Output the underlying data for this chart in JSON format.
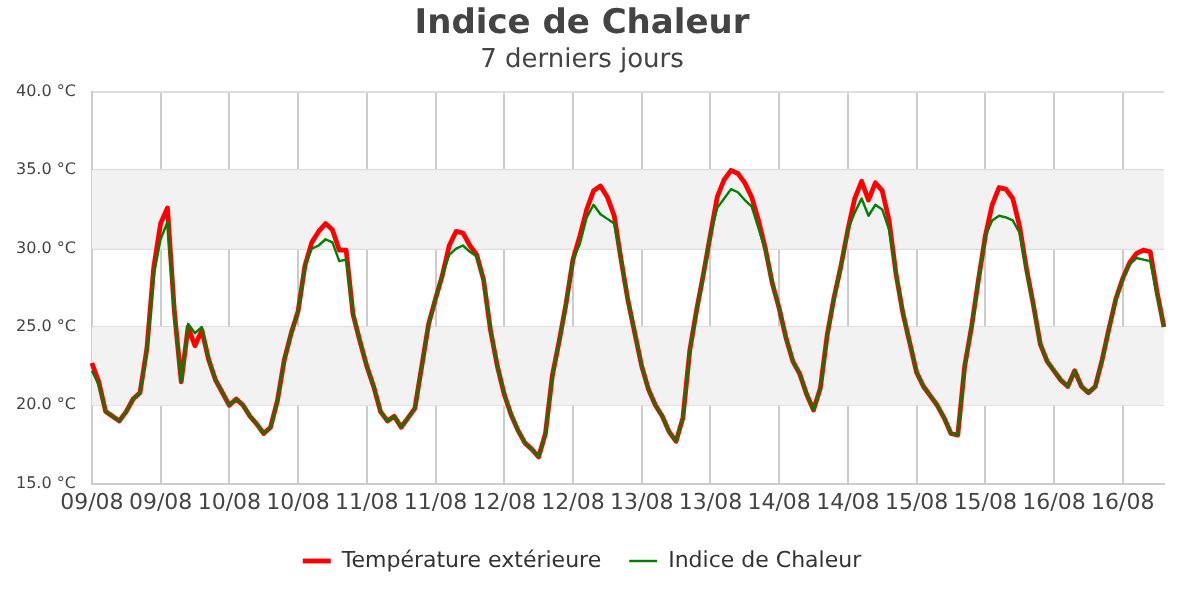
{
  "chart_data": {
    "type": "line",
    "title": "Indice de Chaleur",
    "subtitle": "7 derniers jours",
    "categories": [
      "09/08",
      null,
      null,
      null,
      null,
      null,
      null,
      null,
      null,
      null,
      "09/08",
      null,
      null,
      null,
      null,
      null,
      null,
      null,
      null,
      null,
      "10/08",
      null,
      null,
      null,
      null,
      null,
      null,
      null,
      null,
      null,
      "10/08",
      null,
      null,
      null,
      null,
      null,
      null,
      null,
      null,
      null,
      "11/08",
      null,
      null,
      null,
      null,
      null,
      null,
      null,
      null,
      null,
      "11/08",
      null,
      null,
      null,
      null,
      null,
      null,
      null,
      null,
      null,
      "12/08",
      null,
      null,
      null,
      null,
      null,
      null,
      null,
      null,
      null,
      "12/08",
      null,
      null,
      null,
      null,
      null,
      null,
      null,
      null,
      null,
      "13/08",
      null,
      null,
      null,
      null,
      null,
      null,
      null,
      null,
      null,
      "13/08",
      null,
      null,
      null,
      null,
      null,
      null,
      null,
      null,
      null,
      "14/08",
      null,
      null,
      null,
      null,
      null,
      null,
      null,
      null,
      null,
      "14/08",
      null,
      null,
      null,
      null,
      null,
      null,
      null,
      null,
      null,
      "15/08",
      null,
      null,
      null,
      null,
      null,
      null,
      null,
      null,
      null,
      "15/08",
      null,
      null,
      null,
      null,
      null,
      null,
      null,
      null,
      null,
      "16/08",
      null,
      null,
      null,
      null,
      null,
      null,
      null,
      null,
      null,
      "16/08",
      null,
      null,
      null,
      null,
      null,
      null
    ],
    "series": [
      {
        "name": "Température extérieure",
        "color": "#ff0000",
        "values": [
          22.7,
          21.5,
          19.6,
          19.3,
          19.0,
          19.6,
          20.4,
          20.8,
          23.6,
          28.8,
          31.6,
          32.6,
          26.0,
          21.5,
          25.0,
          23.8,
          24.8,
          22.9,
          21.6,
          20.8,
          20.0,
          20.4,
          20.0,
          19.3,
          18.8,
          18.2,
          18.6,
          20.3,
          22.9,
          24.6,
          26.0,
          28.9,
          30.4,
          31.1,
          31.6,
          31.2,
          29.9,
          29.9,
          25.8,
          24.1,
          22.5,
          21.2,
          19.6,
          19.0,
          19.3,
          18.6,
          19.2,
          19.8,
          22.5,
          25.2,
          26.8,
          28.3,
          30.2,
          31.1,
          31.0,
          30.2,
          29.6,
          28.0,
          24.8,
          22.5,
          20.7,
          19.4,
          18.4,
          17.6,
          17.2,
          16.7,
          18.2,
          21.9,
          24.1,
          26.5,
          29.3,
          30.8,
          32.5,
          33.7,
          34.0,
          33.3,
          32.1,
          29.3,
          26.7,
          24.6,
          22.5,
          21.0,
          20.0,
          19.3,
          18.3,
          17.7,
          19.2,
          23.5,
          26.1,
          28.4,
          30.9,
          33.3,
          34.4,
          35.0,
          34.8,
          34.2,
          33.3,
          31.8,
          30.0,
          27.8,
          26.2,
          24.3,
          22.8,
          22.0,
          20.7,
          19.7,
          21.1,
          24.5,
          26.9,
          28.9,
          31.2,
          33.2,
          34.3,
          33.1,
          34.2,
          33.7,
          31.8,
          28.4,
          25.9,
          24.0,
          22.1,
          21.2,
          20.6,
          20.0,
          19.2,
          18.2,
          18.1,
          22.5,
          25.0,
          28.0,
          30.8,
          32.8,
          33.9,
          33.8,
          33.2,
          31.4,
          28.7,
          26.4,
          23.9,
          22.8,
          22.2,
          21.6,
          21.2,
          22.2,
          21.2,
          20.8,
          21.2,
          22.9,
          24.9,
          26.8,
          28.1,
          29.1,
          29.7,
          29.9,
          29.8,
          27.2,
          25.0
        ]
      },
      {
        "name": "Indice de Chaleur",
        "color": "#008000",
        "values": [
          22.2,
          21.3,
          19.6,
          19.3,
          19.0,
          19.6,
          20.4,
          20.8,
          23.4,
          28.3,
          30.6,
          31.7,
          25.8,
          21.5,
          25.2,
          24.6,
          25.0,
          22.9,
          21.6,
          20.8,
          20.0,
          20.4,
          20.0,
          19.3,
          18.8,
          18.2,
          18.6,
          20.3,
          22.9,
          24.6,
          26.0,
          28.9,
          30.0,
          30.2,
          30.6,
          30.4,
          29.2,
          29.3,
          25.8,
          24.1,
          22.5,
          21.2,
          19.6,
          19.0,
          19.3,
          18.6,
          19.2,
          19.8,
          22.5,
          25.2,
          26.8,
          28.3,
          29.6,
          30.0,
          30.2,
          29.8,
          29.5,
          28.0,
          24.8,
          22.5,
          20.7,
          19.4,
          18.4,
          17.6,
          17.2,
          16.7,
          18.2,
          21.9,
          24.1,
          26.5,
          29.3,
          30.3,
          32.0,
          32.8,
          32.2,
          31.9,
          31.6,
          29.3,
          26.7,
          24.6,
          22.5,
          21.0,
          20.0,
          19.3,
          18.3,
          17.7,
          19.2,
          23.5,
          26.1,
          28.4,
          30.9,
          32.6,
          33.2,
          33.8,
          33.6,
          33.1,
          32.7,
          31.3,
          29.9,
          27.8,
          26.2,
          24.3,
          22.8,
          22.0,
          20.7,
          19.7,
          21.1,
          24.5,
          26.9,
          28.9,
          31.2,
          32.3,
          33.2,
          32.1,
          32.8,
          32.5,
          31.2,
          28.4,
          25.9,
          24.0,
          22.1,
          21.2,
          20.6,
          20.0,
          19.2,
          18.2,
          18.1,
          22.5,
          25.0,
          28.0,
          30.8,
          31.8,
          32.1,
          32.0,
          31.8,
          31.0,
          28.5,
          26.3,
          23.9,
          22.8,
          22.2,
          21.6,
          21.2,
          22.2,
          21.2,
          20.8,
          21.2,
          22.9,
          24.9,
          26.8,
          28.1,
          29.0,
          29.4,
          29.3,
          29.2,
          27.0,
          25.0
        ]
      }
    ],
    "ylim": [
      15,
      40
    ],
    "yticks": [
      {
        "value": 15,
        "label": "15.0 °C"
      },
      {
        "value": 20,
        "label": "20.0 °C"
      },
      {
        "value": 25,
        "label": "25.0 °C"
      },
      {
        "value": 30,
        "label": "30.0 °C"
      },
      {
        "value": 35,
        "label": "35.0 °C"
      },
      {
        "value": 40,
        "label": "40.0 °C"
      }
    ],
    "bands": [
      {
        "axis": "y",
        "from": 20,
        "to": 25,
        "color": "#f2f2f2"
      },
      {
        "axis": "y",
        "from": 30,
        "to": 35,
        "color": "#f2f2f2"
      }
    ],
    "grid": true,
    "legend": "bottom",
    "marker": "none"
  }
}
